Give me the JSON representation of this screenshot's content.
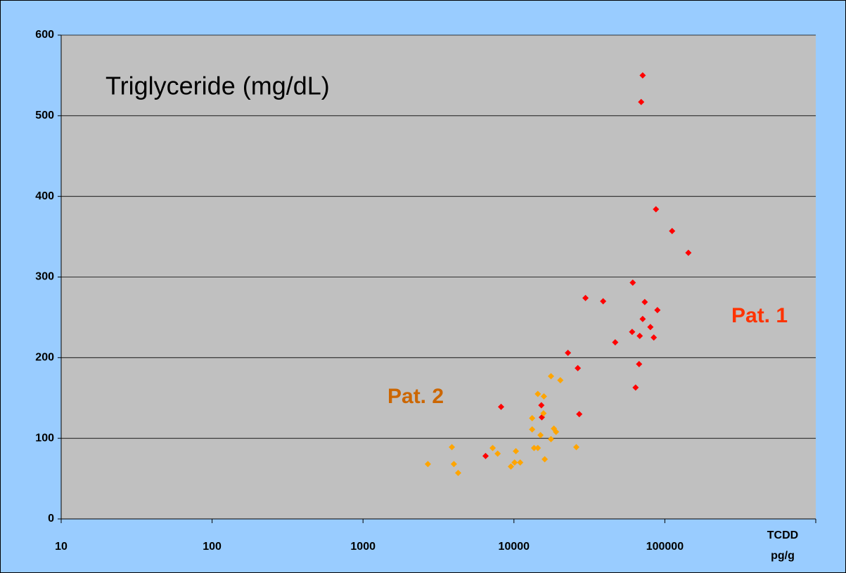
{
  "chart_data": {
    "type": "scatter",
    "title": "Triglyceride (mg/dL)",
    "xlabel": [
      "TCDD",
      "pg/g"
    ],
    "xscale": "log",
    "xlim": [
      10,
      1000000
    ],
    "xticks": [
      10,
      100,
      1000,
      10000,
      100000
    ],
    "ylim": [
      0,
      600
    ],
    "yticks": [
      0,
      100,
      200,
      300,
      400,
      500,
      600
    ],
    "grid": true,
    "series": [
      {
        "name": "Pat. 1",
        "color": "#ff0000",
        "x": [
          71300,
          69700,
          87300,
          111700,
          143200,
          61300,
          29800,
          39000,
          73600,
          89300,
          71300,
          80200,
          60700,
          68200,
          84500,
          46900,
          22800,
          26500,
          67500,
          64000,
          8220,
          15200,
          15300,
          27100,
          6490
        ],
        "values": [
          550,
          517,
          384,
          357,
          330,
          293,
          274,
          270,
          269,
          259,
          248,
          238,
          232,
          227,
          225,
          219,
          206,
          187,
          192,
          163,
          139,
          141,
          126,
          130,
          78
        ]
      },
      {
        "name": "Pat. 2",
        "color": "#ffa500",
        "x": [
          2690,
          3880,
          4000,
          4270,
          7230,
          7800,
          10300,
          9550,
          10100,
          11000,
          13200,
          13200,
          14400,
          13600,
          14400,
          15000,
          15800,
          16000,
          15700,
          17600,
          20300,
          17600,
          18400,
          19000,
          25900
        ],
        "values": [
          68,
          89,
          68,
          57,
          88,
          81,
          84,
          65,
          70,
          70,
          125,
          111,
          155,
          88,
          88,
          104,
          152,
          74,
          131,
          177,
          172,
          99,
          112,
          108,
          89
        ]
      }
    ]
  }
}
